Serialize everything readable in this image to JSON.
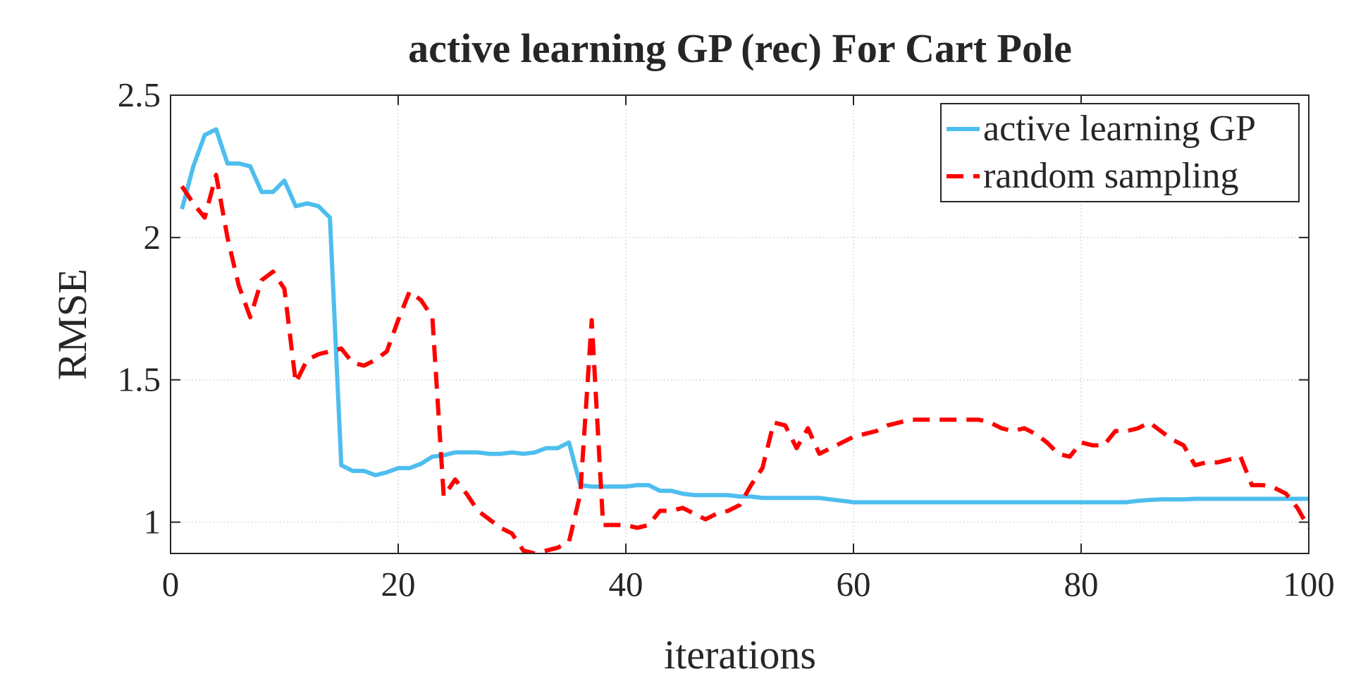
{
  "chart_data": {
    "type": "line",
    "title": "active learning GP (rec) For Cart Pole",
    "x_label": "iterations",
    "y_label": "RMSE",
    "x": [
      1,
      2,
      3,
      4,
      5,
      6,
      7,
      8,
      9,
      10,
      11,
      12,
      13,
      14,
      15,
      16,
      17,
      18,
      19,
      20,
      21,
      22,
      23,
      24,
      25,
      26,
      27,
      28,
      29,
      30,
      31,
      32,
      33,
      34,
      35,
      36,
      37,
      38,
      39,
      40,
      41,
      42,
      43,
      44,
      45,
      46,
      47,
      48,
      49,
      50,
      51,
      52,
      53,
      54,
      55,
      56,
      57,
      58,
      59,
      60,
      61,
      62,
      63,
      64,
      65,
      66,
      67,
      68,
      69,
      70,
      71,
      72,
      73,
      74,
      75,
      76,
      77,
      78,
      79,
      80,
      81,
      82,
      83,
      84,
      85,
      86,
      87,
      88,
      89,
      90,
      91,
      92,
      93,
      94,
      95,
      96,
      97,
      98,
      99,
      100
    ],
    "series": [
      {
        "name": "active learning GP",
        "color": "#4dbeee",
        "dash": "solid",
        "values": [
          2.1,
          2.25,
          2.36,
          2.38,
          2.26,
          2.26,
          2.25,
          2.16,
          2.16,
          2.2,
          2.11,
          2.12,
          2.11,
          2.07,
          1.2,
          1.18,
          1.18,
          1.165,
          1.175,
          1.19,
          1.19,
          1.205,
          1.23,
          1.235,
          1.245,
          1.245,
          1.245,
          1.24,
          1.24,
          1.245,
          1.24,
          1.245,
          1.26,
          1.26,
          1.28,
          1.13,
          1.125,
          1.125,
          1.125,
          1.125,
          1.13,
          1.13,
          1.11,
          1.11,
          1.1,
          1.095,
          1.095,
          1.095,
          1.095,
          1.09,
          1.09,
          1.085,
          1.085,
          1.085,
          1.085,
          1.085,
          1.085,
          1.08,
          1.075,
          1.07,
          1.07,
          1.07,
          1.07,
          1.07,
          1.07,
          1.07,
          1.07,
          1.07,
          1.07,
          1.07,
          1.07,
          1.07,
          1.07,
          1.07,
          1.07,
          1.07,
          1.07,
          1.07,
          1.07,
          1.07,
          1.07,
          1.07,
          1.07,
          1.07,
          1.075,
          1.078,
          1.08,
          1.08,
          1.08,
          1.082,
          1.082,
          1.082,
          1.082,
          1.082,
          1.082,
          1.082,
          1.082,
          1.082,
          1.082,
          1.082
        ]
      },
      {
        "name": "random sampling",
        "color": "#ff0000",
        "dash": "dashed",
        "values": [
          2.18,
          2.12,
          2.07,
          2.22,
          2.0,
          1.83,
          1.72,
          1.85,
          1.88,
          1.82,
          1.49,
          1.57,
          1.59,
          1.6,
          1.61,
          1.56,
          1.55,
          1.57,
          1.6,
          1.71,
          1.81,
          1.78,
          1.72,
          1.09,
          1.15,
          1.1,
          1.04,
          1.01,
          0.98,
          0.96,
          0.9,
          0.89,
          0.9,
          0.91,
          0.93,
          1.1,
          1.71,
          0.99,
          0.99,
          0.99,
          0.98,
          0.99,
          1.04,
          1.04,
          1.05,
          1.03,
          1.01,
          1.03,
          1.04,
          1.06,
          1.13,
          1.19,
          1.35,
          1.34,
          1.26,
          1.33,
          1.24,
          1.26,
          1.28,
          1.3,
          1.31,
          1.32,
          1.34,
          1.35,
          1.36,
          1.36,
          1.36,
          1.36,
          1.36,
          1.36,
          1.36,
          1.35,
          1.33,
          1.32,
          1.33,
          1.31,
          1.28,
          1.24,
          1.23,
          1.28,
          1.27,
          1.27,
          1.32,
          1.32,
          1.33,
          1.35,
          1.32,
          1.29,
          1.27,
          1.2,
          1.21,
          1.21,
          1.22,
          1.23,
          1.13,
          1.13,
          1.12,
          1.1,
          1.05,
          0.98
        ]
      }
    ],
    "xlim": [
      0,
      100
    ],
    "xticks": [
      0,
      20,
      40,
      60,
      80,
      100
    ],
    "ylim": [
      0.89,
      2.5
    ],
    "yticks": [
      1,
      1.5,
      2,
      2.5
    ],
    "grid": true,
    "legend": "upper right"
  }
}
